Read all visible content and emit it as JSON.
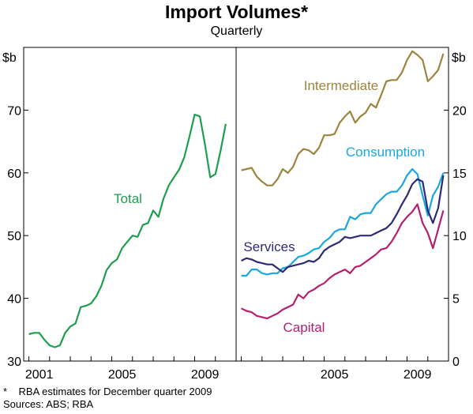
{
  "title": "Import Volumes*",
  "subtitle": "Quarterly",
  "notes": {
    "footnote_mark": "*",
    "footnote": "RBA estimates for December quarter 2009",
    "sources": "Sources: ABS; RBA"
  },
  "colors": {
    "total": "#1f9e4f",
    "intermediate": "#9c8440",
    "consumption": "#1aa7df",
    "services": "#2d2a78",
    "capital": "#b5206e"
  },
  "chart_data": [
    {
      "type": "line",
      "panel": "left",
      "ylabel": "$b",
      "ylim": [
        30,
        80
      ],
      "yticks": [
        30,
        40,
        50,
        60,
        70
      ],
      "xlim": [
        1999.75,
        2010.0
      ],
      "xticks": [
        2001,
        2005,
        2009
      ],
      "grid": false,
      "series": [
        {
          "name": "Total",
          "color_key": "total",
          "x": [
            2000.0,
            2000.25,
            2000.5,
            2000.75,
            2001.0,
            2001.25,
            2001.5,
            2001.75,
            2002.0,
            2002.25,
            2002.5,
            2002.75,
            2003.0,
            2003.25,
            2003.5,
            2003.75,
            2004.0,
            2004.25,
            2004.5,
            2004.75,
            2005.0,
            2005.25,
            2005.5,
            2005.75,
            2006.0,
            2006.25,
            2006.5,
            2006.75,
            2007.0,
            2007.25,
            2007.5,
            2007.75,
            2008.0,
            2008.25,
            2008.5,
            2008.75,
            2009.0,
            2009.25,
            2009.5,
            2009.75
          ],
          "values": [
            34.3,
            34.5,
            34.5,
            33.4,
            32.5,
            32.2,
            32.5,
            34.5,
            35.5,
            36.0,
            38.6,
            38.8,
            39.2,
            40.3,
            42.0,
            44.5,
            45.6,
            46.2,
            48.0,
            49.0,
            50.0,
            49.8,
            51.7,
            52.0,
            54.0,
            53.0,
            55.9,
            58.0,
            59.3,
            60.5,
            62.5,
            65.8,
            69.3,
            69.0,
            64.5,
            59.3,
            59.8,
            63.5,
            67.8,
            null
          ]
        }
      ]
    },
    {
      "type": "line",
      "panel": "right",
      "ylabel": "$b",
      "ylim": [
        0,
        25
      ],
      "yticks": [
        0,
        5,
        10,
        15,
        20
      ],
      "xlim": [
        1999.75,
        2010.0
      ],
      "xticks": [
        2005,
        2009
      ],
      "grid": false,
      "series": [
        {
          "name": "Intermediate",
          "color_key": "intermediate",
          "x": [
            2000.0,
            2000.25,
            2000.5,
            2000.75,
            2001.0,
            2001.25,
            2001.5,
            2001.75,
            2002.0,
            2002.25,
            2002.5,
            2002.75,
            2003.0,
            2003.25,
            2003.5,
            2003.75,
            2004.0,
            2004.25,
            2004.5,
            2004.75,
            2005.0,
            2005.25,
            2005.5,
            2005.75,
            2006.0,
            2006.25,
            2006.5,
            2006.75,
            2007.0,
            2007.25,
            2007.5,
            2007.75,
            2008.0,
            2008.25,
            2008.5,
            2008.75,
            2009.0,
            2009.25,
            2009.5,
            2009.75
          ],
          "values": [
            15.2,
            15.3,
            15.4,
            14.7,
            14.3,
            14.0,
            14.0,
            14.5,
            15.3,
            15.0,
            15.5,
            16.5,
            16.9,
            16.8,
            16.5,
            17.0,
            18.0,
            18.0,
            18.1,
            19.0,
            19.5,
            19.9,
            19.0,
            19.5,
            19.8,
            20.5,
            20.2,
            21.2,
            22.3,
            22.4,
            22.4,
            23.0,
            24.0,
            24.7,
            24.4,
            24.0,
            22.3,
            22.7,
            23.2,
            24.5
          ]
        },
        {
          "name": "Consumption",
          "color_key": "consumption",
          "x": [
            2000.0,
            2000.25,
            2000.5,
            2000.75,
            2001.0,
            2001.25,
            2001.5,
            2001.75,
            2002.0,
            2002.25,
            2002.5,
            2002.75,
            2003.0,
            2003.25,
            2003.5,
            2003.75,
            2004.0,
            2004.25,
            2004.5,
            2004.75,
            2005.0,
            2005.25,
            2005.5,
            2005.75,
            2006.0,
            2006.25,
            2006.5,
            2006.75,
            2007.0,
            2007.25,
            2007.5,
            2007.75,
            2008.0,
            2008.25,
            2008.5,
            2008.75,
            2009.0,
            2009.25,
            2009.5,
            2009.75
          ],
          "values": [
            6.8,
            6.8,
            7.3,
            7.3,
            7.0,
            6.9,
            7.0,
            7.0,
            7.4,
            7.5,
            7.9,
            8.3,
            8.4,
            8.6,
            8.9,
            9.0,
            9.5,
            9.8,
            10.3,
            10.5,
            10.5,
            11.5,
            11.3,
            11.7,
            11.8,
            11.8,
            12.5,
            12.9,
            13.3,
            13.5,
            13.5,
            14.0,
            14.8,
            15.3,
            14.9,
            13.2,
            11.6,
            13.2,
            13.9,
            15.0
          ]
        },
        {
          "name": "Services",
          "color_key": "services",
          "x": [
            2000.0,
            2000.25,
            2000.5,
            2000.75,
            2001.0,
            2001.25,
            2001.5,
            2001.75,
            2002.0,
            2002.25,
            2002.5,
            2002.75,
            2003.0,
            2003.25,
            2003.5,
            2003.75,
            2004.0,
            2004.25,
            2004.5,
            2004.75,
            2005.0,
            2005.25,
            2005.5,
            2005.75,
            2006.0,
            2006.25,
            2006.5,
            2006.75,
            2007.0,
            2007.25,
            2007.5,
            2007.75,
            2008.0,
            2008.25,
            2008.5,
            2008.75,
            2009.0,
            2009.25,
            2009.5,
            2009.75
          ],
          "values": [
            8.0,
            8.2,
            8.1,
            7.9,
            7.8,
            7.7,
            7.7,
            7.4,
            7.1,
            7.5,
            7.6,
            7.7,
            7.8,
            8.0,
            7.9,
            8.2,
            8.8,
            9.1,
            9.3,
            9.5,
            9.9,
            9.8,
            9.9,
            10.0,
            10.0,
            10.0,
            10.2,
            10.4,
            10.6,
            11.0,
            11.7,
            12.5,
            13.2,
            14.1,
            14.5,
            14.3,
            12.0,
            11.0,
            12.2,
            14.8
          ]
        },
        {
          "name": "Capital",
          "color_key": "capital",
          "x": [
            2000.0,
            2000.25,
            2000.5,
            2000.75,
            2001.0,
            2001.25,
            2001.5,
            2001.75,
            2002.0,
            2002.25,
            2002.5,
            2002.75,
            2003.0,
            2003.25,
            2003.5,
            2003.75,
            2004.0,
            2004.25,
            2004.5,
            2004.75,
            2005.0,
            2005.25,
            2005.5,
            2005.75,
            2006.0,
            2006.25,
            2006.5,
            2006.75,
            2007.0,
            2007.25,
            2007.5,
            2007.75,
            2008.0,
            2008.25,
            2008.5,
            2008.75,
            2009.0,
            2009.25,
            2009.5,
            2009.75
          ],
          "values": [
            4.2,
            4.0,
            3.9,
            3.6,
            3.5,
            3.4,
            3.6,
            3.8,
            4.1,
            4.3,
            4.5,
            5.3,
            5.0,
            5.5,
            5.7,
            6.0,
            6.2,
            6.6,
            6.9,
            7.1,
            7.3,
            7.0,
            7.5,
            7.6,
            7.9,
            8.2,
            8.5,
            8.9,
            9.0,
            9.5,
            10.2,
            11.0,
            11.5,
            11.9,
            12.5,
            11.0,
            10.2,
            9.0,
            10.5,
            12.0
          ]
        }
      ]
    }
  ]
}
